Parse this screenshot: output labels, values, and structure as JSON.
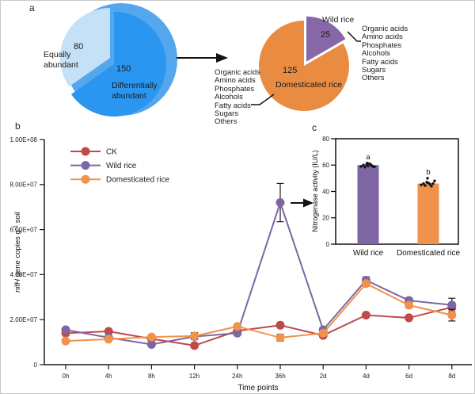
{
  "figure": {
    "panel_a_label": "a",
    "panel_b_label": "b",
    "panel_c_label": "c"
  },
  "panel_a": {
    "pie_left": {
      "slice_light_value": "80",
      "slice_light_label": "Equally abundant",
      "slice_dark_value": "150",
      "slice_dark_label": "Differentially abundant"
    },
    "pie_right": {
      "wild_value": "25",
      "wild_label": "Wild rice",
      "dom_value": "125",
      "dom_label": "Domesticated rice",
      "metabolites_left": [
        "Organic acids",
        "Amino acids",
        "Phosphates",
        "Alcohols",
        "Fatty acids",
        "Sugars",
        "Others"
      ],
      "metabolites_right": [
        "Organic acids",
        "Amino acids",
        "Phosphates",
        "Alcohols",
        "Fatty acids",
        "Sugars",
        "Others"
      ]
    }
  },
  "colors": {
    "ck": "#be4b48",
    "wild_rice": "#7e66a4",
    "domesticated_rice": "#f0924c",
    "pie_light_blue": "#c5e1f8",
    "pie_dark_blue": "#2b96f0",
    "pie_back_blue": "#54a7ed",
    "pie_orange": "#e98c42",
    "pie_purple": "#8668a7"
  },
  "chart_data": [
    {
      "id": "pie-left",
      "type": "pie",
      "slices": [
        {
          "label": "Equally abundant",
          "value": 80,
          "color": "#c5e1f8"
        },
        {
          "label": "Differentially abundant",
          "value": 150,
          "color": "#2b96f0",
          "exploded": true
        }
      ],
      "back_circle_color": "#54a7ed"
    },
    {
      "id": "pie-right",
      "type": "pie",
      "slices": [
        {
          "label": "Wild rice",
          "value": 25,
          "color": "#8668a7",
          "exploded": true
        },
        {
          "label": "Domesticated rice",
          "value": 125,
          "color": "#e98c42"
        }
      ],
      "annotation_lists": [
        "Organic acids",
        "Amino acids",
        "Phosphates",
        "Alcohols",
        "Fatty acids",
        "Sugars",
        "Others"
      ]
    },
    {
      "id": "line-b",
      "type": "line",
      "xlabel": "Time points",
      "ylabel_parts": {
        "italic": "nifH",
        "mid": " gene copies g",
        "sup": "-1",
        "post": " soil"
      },
      "ylim": [
        0,
        100000000
      ],
      "y_ticks": [
        {
          "v": 0,
          "label": "0"
        },
        {
          "v": 20000000,
          "label": "2.00E+07"
        },
        {
          "v": 40000000,
          "label": "4.00E+07"
        },
        {
          "v": 60000000,
          "label": "6.00E+07"
        },
        {
          "v": 80000000,
          "label": "8.00E+07"
        },
        {
          "v": 100000000,
          "label": "1.00E+08"
        }
      ],
      "categories": [
        "0h",
        "4h",
        "8h",
        "12h",
        "24h",
        "36h",
        "2d",
        "4d",
        "6d",
        "8d"
      ],
      "legend_position": "top-left-inside",
      "grid": false,
      "series": [
        {
          "name": "CK",
          "color": "#be4b48",
          "values": [
            14000000.0,
            14800000.0,
            11500000.0,
            8500000.0,
            15000000.0,
            17500000.0,
            13000000.0,
            22000000.0,
            20800000.0,
            25500000.0
          ],
          "errors": [
            0,
            0,
            0,
            0,
            0,
            0,
            0,
            0,
            0,
            0
          ]
        },
        {
          "name": "Wild rice",
          "color": "#7e66a4",
          "values": [
            15500000.0,
            12000000.0,
            9000000.0,
            12500000.0,
            14000000.0,
            72000000.0,
            15500000.0,
            37500000.0,
            28500000.0,
            26500000.0
          ],
          "errors": [
            0,
            0,
            0,
            0,
            0,
            8500000.0,
            1000000.0,
            1500000.0,
            1200000.0,
            3000000.0
          ]
        },
        {
          "name": "Domesticated rice",
          "color": "#f0924c",
          "values": [
            10500000.0,
            11300000.0,
            12300000.0,
            12700000.0,
            17000000.0,
            12000000.0,
            14000000.0,
            36000000.0,
            26400000.0,
            22000000.0
          ],
          "errors": [
            0,
            0,
            0,
            1500000.0,
            0,
            1500000.0,
            0,
            1000000.0,
            1200000.0,
            2600000.0
          ]
        }
      ]
    },
    {
      "id": "bar-c",
      "type": "bar",
      "ylabel": "Nitrogenase activity (IU/L)",
      "ylim": [
        0,
        80
      ],
      "y_ticks": [
        0,
        20,
        40,
        60,
        80
      ],
      "categories": [
        "Wild rice",
        "Domesticated rice"
      ],
      "values": [
        60,
        46
      ],
      "colors": [
        "#7e66a4",
        "#f0924c"
      ],
      "sig_letters": [
        "a",
        "b"
      ],
      "scatter": [
        [
          59,
          60,
          58.5,
          60.5,
          59.5,
          61,
          60,
          59,
          58.8,
          61.5
        ],
        [
          45,
          46,
          44.5,
          47,
          46.5,
          45.5,
          44,
          46,
          48,
          50
        ]
      ]
    }
  ]
}
